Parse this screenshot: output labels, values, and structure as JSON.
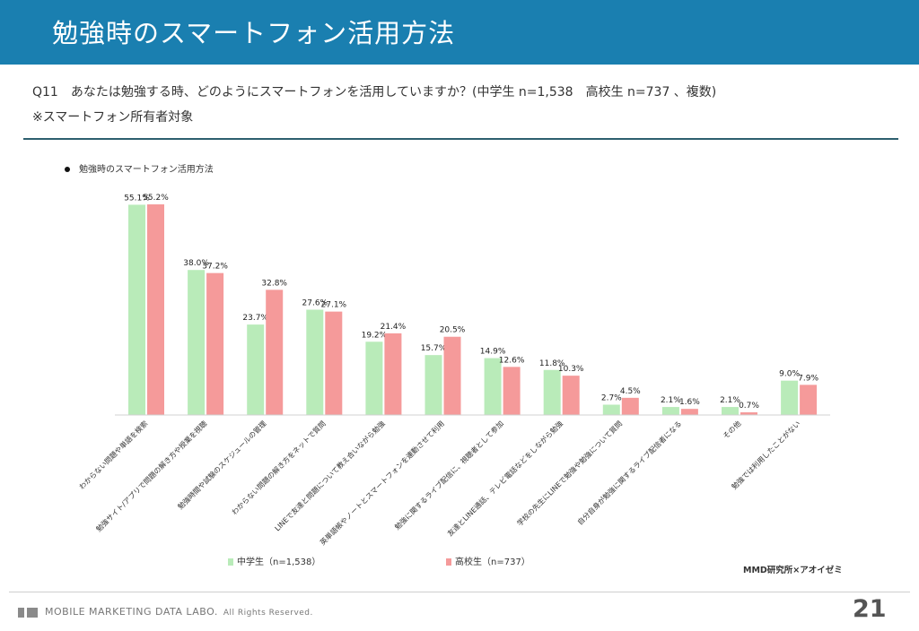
{
  "header": {
    "title": "勉強時のスマートフォン活用方法"
  },
  "question": "Q11　あなたは勉強する時、どのようにスマートフォンを活用していますか？(中学生 n=1,538　高校生 n=737 、複数)",
  "note": "※スマートフォン所有者対象",
  "chart_title": "勉強時のスマートフォン活用方法",
  "legend": {
    "middle": "中学生（n=1,538）",
    "high": "高校生（n=737）"
  },
  "credit": "MMD研究所×アオイゼミ",
  "footer": {
    "brand": "MOBILE MARKETING DATA LABO.",
    "rights": "All Rights Reserved."
  },
  "page_number": "21",
  "colors": {
    "header": "#1a7fb0",
    "middle": "#b9ebb9",
    "high": "#f59a9a"
  },
  "chart_data": {
    "type": "bar",
    "categories": [
      "わからない問題や単語を検索",
      "勉強サイト/アプリで問題の解き方や授業を視聴",
      "勉強時間や試験のスケジュールの管理",
      "わからない問題の解き方をネットで質問",
      "LINEで友達と問題について教え合いながら勉強",
      "英単語帳やノートとスマートフォンを連動させて利用",
      "勉強に関するライブ配信に、視聴者として参加",
      "友達とLINE通話、テレビ電話などをしながら勉強",
      "学校の先生にLINEで勉強や勉強について質問",
      "自分自身が勉強に関するライブ配信者になる",
      "その他",
      "勉強では利用したことがない"
    ],
    "series": [
      {
        "name": "中学生（n=1,538）",
        "values": [
          55.1,
          38.0,
          23.7,
          27.6,
          19.2,
          15.7,
          14.9,
          11.8,
          2.7,
          2.1,
          2.1,
          9.0
        ]
      },
      {
        "name": "高校生（n=737）",
        "values": [
          55.2,
          37.2,
          32.8,
          27.1,
          21.4,
          20.5,
          12.6,
          10.3,
          4.5,
          1.6,
          0.7,
          7.9
        ]
      }
    ],
    "ylim": [
      0,
      60
    ],
    "grid": false,
    "legend_position": "bottom-left"
  }
}
